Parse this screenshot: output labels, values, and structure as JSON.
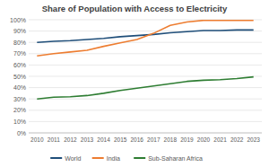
{
  "chart_data": {
    "type": "line",
    "title": "Share of Population with Access to Electricity",
    "categories": [
      "2010",
      "2011",
      "2012",
      "2013",
      "2014",
      "2015",
      "2016",
      "2017",
      "2018",
      "2019",
      "2020",
      "2021",
      "2022",
      "2023"
    ],
    "series": [
      {
        "name": "World",
        "color": "#1f4e79",
        "values": [
          80,
          81,
          81.5,
          82.5,
          83.5,
          85,
          86,
          87,
          88.5,
          89.5,
          90.5,
          90.5,
          91,
          91
        ]
      },
      {
        "name": "India",
        "color": "#ed7d31",
        "values": [
          68,
          70,
          71.5,
          73,
          76.5,
          79.5,
          82.5,
          88,
          95,
          98,
          99.5,
          99.5,
          99.5,
          99.5
        ]
      },
      {
        "name": "Sub-Saharan Africa",
        "color": "#2e7d32",
        "values": [
          30,
          31.5,
          32,
          33,
          35,
          37.5,
          39.5,
          41.5,
          43.5,
          45.5,
          46.5,
          47,
          48,
          49.5
        ]
      }
    ],
    "ylim": [
      0,
      100
    ],
    "yticks": [
      {
        "value": 0,
        "label": "0%"
      },
      {
        "value": 10,
        "label": "10%"
      },
      {
        "value": 20,
        "label": "20%"
      },
      {
        "value": 30,
        "label": "30%"
      },
      {
        "value": 40,
        "label": "40%"
      },
      {
        "value": 50,
        "label": "50%"
      },
      {
        "value": 60,
        "label": "60%"
      },
      {
        "value": 70,
        "label": "70%"
      },
      {
        "value": 80,
        "label": "80%"
      },
      {
        "value": 90,
        "label": "90%"
      },
      {
        "value": 100,
        "label": "100%"
      }
    ],
    "grid": true,
    "legend": "bottom"
  }
}
